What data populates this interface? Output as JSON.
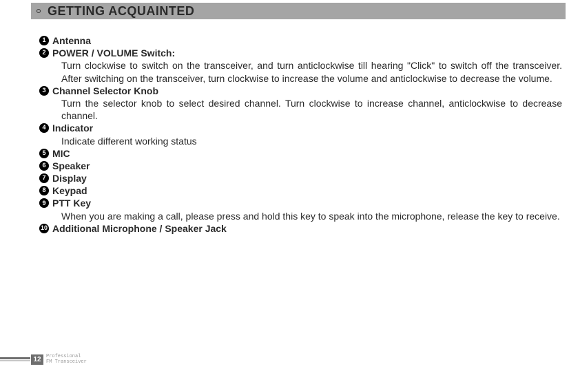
{
  "header": {
    "title": "GETTING ACQUAINTED"
  },
  "items": [
    {
      "num": "1",
      "title": "Antenna",
      "desc": ""
    },
    {
      "num": "2",
      "title": "POWER / VOLUME Switch:",
      "desc": "Turn clockwise to switch on the transceiver, and turn anticlockwise till hearing \"Click\" to switch off the transceiver. After switching on the transceiver, turn clockwise to increase the volume and anticlockwise to decrease the volume."
    },
    {
      "num": "3",
      "title": "Channel Selector Knob",
      "desc": "Turn the selector knob to select desired channel. Turn clockwise to increase channel, anticlockwise to decrease channel."
    },
    {
      "num": "4",
      "title": "Indicator",
      "desc": "Indicate different working status"
    },
    {
      "num": "5",
      "title": "MIC",
      "desc": ""
    },
    {
      "num": "6",
      "title": "Speaker",
      "desc": ""
    },
    {
      "num": "7",
      "title": "Display",
      "desc": ""
    },
    {
      "num": "8",
      "title": "Keypad",
      "desc": ""
    },
    {
      "num": "9",
      "title": "PTT Key",
      "desc": "When you are making a call, please press and hold this key to speak into the microphone, release the key to receive."
    },
    {
      "num": "10",
      "title": "Additional Microphone / Speaker Jack",
      "desc": ""
    }
  ],
  "footer": {
    "page_number": "12",
    "line1": "Professional",
    "line2": "FM Transceiver"
  }
}
